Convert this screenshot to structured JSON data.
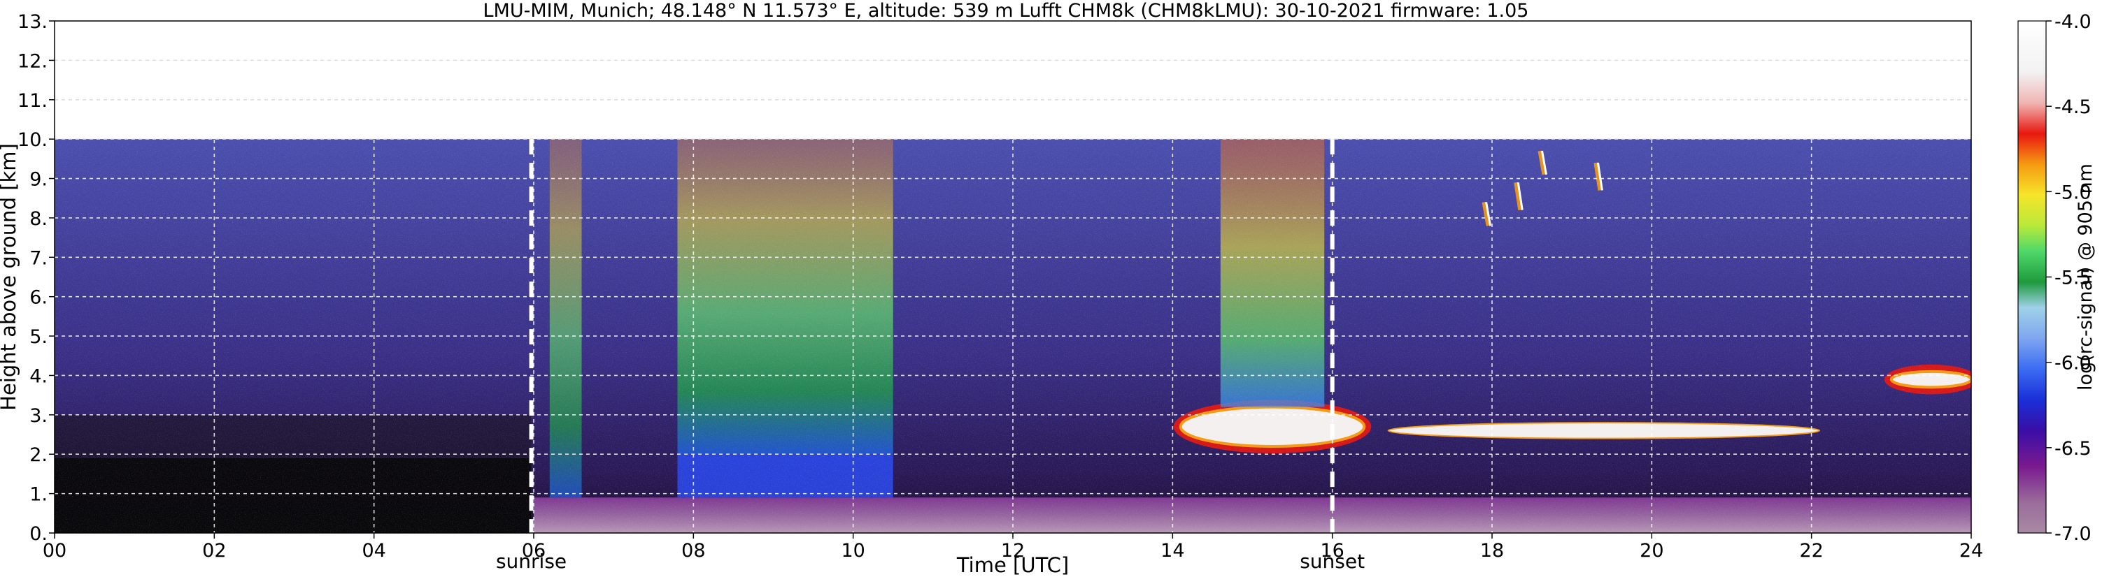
{
  "chart_data": {
    "type": "heatmap",
    "title": "LMU-MIM, Munich; 48.148° N 11.573° E, altitude: 539 m    Lufft CHM8k (CHM8kLMU): 30-10-2021    firmware: 1.05",
    "xlabel": "Time [UTC]",
    "ylabel": "Height above ground [km]",
    "xlim": [
      0,
      24
    ],
    "ylim": [
      0,
      13
    ],
    "x_ticks": [
      "00",
      "02",
      "04",
      "06",
      "08",
      "10",
      "12",
      "14",
      "16",
      "18",
      "20",
      "22",
      "24"
    ],
    "y_ticks": [
      "0.",
      "1.",
      "2.",
      "3.",
      "4.",
      "5.",
      "6.",
      "7.",
      "8.",
      "9.",
      "10.",
      "11.",
      "12.",
      "13."
    ],
    "grid": true,
    "measurement_top_km": 10,
    "events": [
      {
        "label": "sunrise",
        "x": 5.97
      },
      {
        "label": "sunset",
        "x": 16.0
      }
    ],
    "colorbar": {
      "label": "log(rc-signal) @ 905 nm",
      "range": [
        -7.0,
        -4.0
      ],
      "ticks": [
        "-7.0",
        "-6.5",
        "-6.0",
        "-5.5",
        "-5.0",
        "-4.5",
        "-4.0"
      ]
    },
    "features": [
      {
        "kind": "boundary_layer_aerosol",
        "x_start": 6.0,
        "x_end": 24.0,
        "y_top": 0.9
      },
      {
        "kind": "convective_layer",
        "x_start": 7.8,
        "x_end": 10.5,
        "y_top": 2.0
      },
      {
        "kind": "cloud_layer",
        "x_start": 14.1,
        "x_end": 16.4,
        "y_bottom": 2.2,
        "y_top": 3.2
      },
      {
        "kind": "cloud_layer",
        "x_start": 16.7,
        "x_end": 22.1,
        "y_bottom": 2.4,
        "y_top": 2.8
      },
      {
        "kind": "cloud_layer",
        "x_start": 23.0,
        "x_end": 24.0,
        "y_bottom": 3.7,
        "y_top": 4.1
      },
      {
        "kind": "cirrus_streaks",
        "x_start": 17.8,
        "x_end": 19.5,
        "y_bottom": 7.5,
        "y_top": 9.7
      }
    ]
  }
}
